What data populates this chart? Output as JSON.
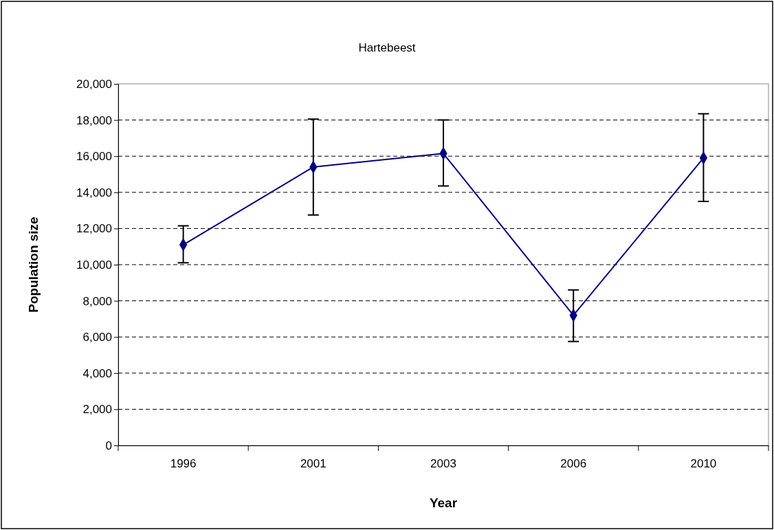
{
  "chart_data": {
    "type": "line",
    "title": "Hartebeest",
    "xlabel": "Year",
    "ylabel": "Population size",
    "categories": [
      "1996",
      "2001",
      "2003",
      "2006",
      "2010"
    ],
    "series": [
      {
        "color": "#000080",
        "values": [
          11100,
          15400,
          16150,
          7200,
          15900
        ],
        "errors": [
          [
            10100,
            12150
          ],
          [
            12750,
            18050
          ],
          [
            14350,
            18000
          ],
          [
            5750,
            8600
          ],
          [
            13500,
            18350
          ]
        ]
      }
    ],
    "ylim": [
      0,
      20000
    ],
    "yticks": [
      {
        "value": 0,
        "label": "0"
      },
      {
        "value": 2000,
        "label": "2,000"
      },
      {
        "value": 4000,
        "label": "4,000"
      },
      {
        "value": 6000,
        "label": "6,000"
      },
      {
        "value": 8000,
        "label": "8,000"
      },
      {
        "value": 10000,
        "label": "10,000"
      },
      {
        "value": 12000,
        "label": "12,000"
      },
      {
        "value": 14000,
        "label": "14,000"
      },
      {
        "value": 16000,
        "label": "16,000"
      },
      {
        "value": 18000,
        "label": "18,000"
      },
      {
        "value": 20000,
        "label": "20,000"
      }
    ],
    "grid": "y",
    "marker": "diamond",
    "line_style": "solid",
    "legend": false
  }
}
